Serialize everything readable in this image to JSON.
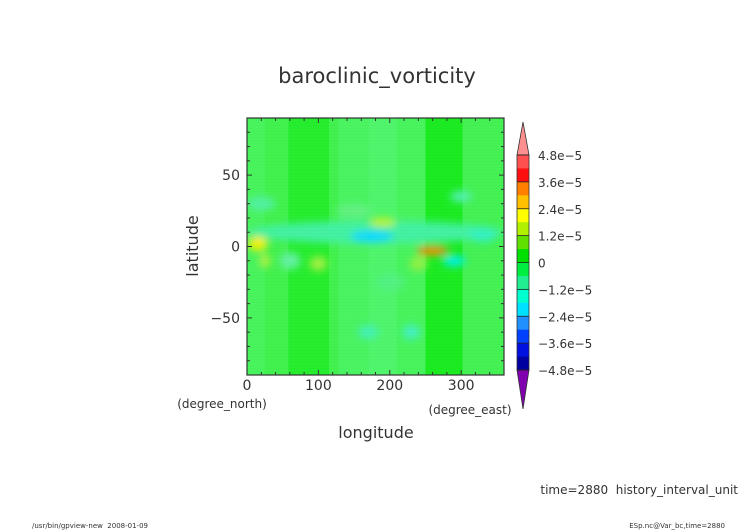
{
  "chart_data": {
    "type": "heatmap",
    "title": "baroclinic_vorticity",
    "xlabel": "longitude",
    "xunits": "(degree_east)",
    "ylabel": "latitude",
    "yunits": "(degree_north)",
    "xlim": [
      0,
      360
    ],
    "ylim": [
      -90,
      90
    ],
    "xticks": [
      0,
      100,
      200,
      300
    ],
    "xtick_labels": [
      "0",
      "100",
      "200",
      "300"
    ],
    "yticks": [
      50,
      0,
      -50
    ],
    "ytick_labels": [
      "50",
      "0",
      "−50"
    ],
    "colorbar": {
      "levels": [
        4.8e-05,
        3.6e-05,
        2.4e-05,
        1.2e-05,
        0,
        -1.2e-05,
        -2.4e-05,
        -3.6e-05,
        -4.8e-05
      ],
      "labels": [
        "4.8e−5",
        "3.6e−5",
        "2.4e−5",
        "1.2e−5",
        "0",
        "−1.2e−5",
        "−2.4e−5",
        "−3.6e−5",
        "−4.8e−5"
      ],
      "colors": [
        "#ff9090",
        "#ff5050",
        "#ff1010",
        "#ff8000",
        "#ffc000",
        "#ffff00",
        "#b0f000",
        "#60e000",
        "#00e000",
        "#00ee40",
        "#20ee90",
        "#00ffd0",
        "#00e0ff",
        "#2090ff",
        "#0040ff",
        "#0010e0",
        "#0000a0",
        "#8000b0"
      ]
    },
    "features": [
      {
        "lon": 15,
        "lat": 2,
        "value": 1.5e-05
      },
      {
        "lon": 175,
        "lat": 7,
        "value": -1.5e-05
      },
      {
        "lon": 260,
        "lat": -3,
        "value": 2.6e-05
      },
      {
        "lon": 190,
        "lat": 17,
        "value": 1e-05
      },
      {
        "lon": 290,
        "lat": -10,
        "value": -1.2e-05
      }
    ]
  },
  "footer": {
    "time_label": "time=2880  history_interval_unit",
    "program": "/usr/bin/gpview-new  2008-01-09",
    "source": "ESp.nc@Var_bc,time=2880"
  }
}
